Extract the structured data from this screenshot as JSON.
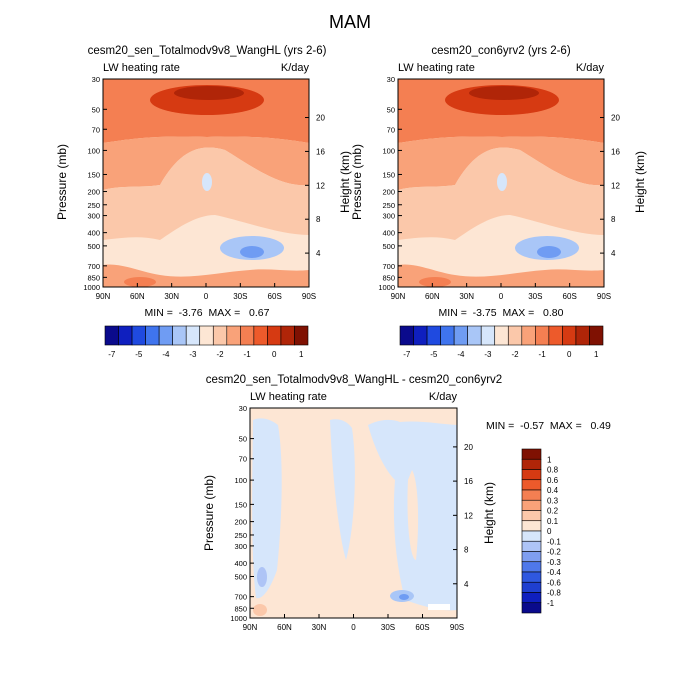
{
  "page_title": "MAM",
  "panels": [
    {
      "title": "cesm20_sen_Totalmodv9v8_WangHL (yrs 2-6)",
      "left_label": "LW heating rate",
      "right_label": "K/day",
      "ylabel": "Pressure (mb)",
      "y2label": "Height (km)",
      "stats": "MIN =  -3.76  MAX =   0.67"
    },
    {
      "title": "cesm20_con6yrv2 (yrs 2-6)",
      "left_label": "LW heating rate",
      "right_label": "K/day",
      "ylabel": "Pressure (mb)",
      "y2label": "Height (km)",
      "stats": "MIN =  -3.75  MAX =   0.80"
    },
    {
      "title": "cesm20_sen_Totalmodv9v8_WangHL - cesm20_con6yrv2",
      "left_label": "LW heating rate",
      "right_label": "K/day",
      "ylabel": "Pressure (mb)",
      "y2label": "Height (km)",
      "stats": "MIN =  -0.57  MAX =   0.49"
    }
  ],
  "colorbar_top": {
    "colors": [
      "#0a0a8c",
      "#0f1fbf",
      "#1f4ae0",
      "#3f74ee",
      "#6f9cf3",
      "#a9c6f7",
      "#d6e6fb",
      "#fde6d4",
      "#fbc8aa",
      "#f9a279",
      "#f47f52",
      "#ed5a2b",
      "#d63a12",
      "#b02508",
      "#7f1102"
    ],
    "tick_labels": [
      "-7",
      "-5",
      "-4",
      "-3",
      "-2",
      "-1",
      "0",
      "1"
    ]
  },
  "colorbar_diff": {
    "colors": [
      "#0a0a8c",
      "#0f1fbf",
      "#1f3fd0",
      "#2f58e0",
      "#4f78ea",
      "#7f9ef0",
      "#aec4f6",
      "#d6e6fb",
      "#fde6d4",
      "#fbc8aa",
      "#f9a279",
      "#f47f52",
      "#ed5a2b",
      "#d63a12",
      "#b02508",
      "#7f1102"
    ],
    "tick_labels": [
      "-1",
      "-0.8",
      "-0.6",
      "-0.4",
      "-0.3",
      "-0.2",
      "-0.1",
      "0",
      "0.1",
      "0.2",
      "0.3",
      "0.4",
      "0.6",
      "0.8",
      "1"
    ]
  },
  "chart_data": [
    {
      "type": "heatmap",
      "title": "cesm20_sen_Totalmodv9v8_WangHL (yrs 2-6)",
      "variable": "LW heating rate",
      "units": "K/day",
      "x_tick_labels": [
        "90N",
        "60N",
        "30N",
        "0",
        "30S",
        "60S",
        "90S"
      ],
      "y_tick_labels": [
        "30",
        "50",
        "70",
        "100",
        "150",
        "200",
        "250",
        "300",
        "400",
        "500",
        "700",
        "850",
        "1000"
      ],
      "y2_tick_labels": [
        "20",
        "16",
        "12",
        "8",
        "4"
      ],
      "y_scale": "log",
      "ylim": [
        1000,
        30
      ],
      "min": -3.76,
      "max": 0.67
    },
    {
      "type": "heatmap",
      "title": "cesm20_con6yrv2 (yrs 2-6)",
      "variable": "LW heating rate",
      "units": "K/day",
      "x_tick_labels": [
        "90N",
        "60N",
        "30N",
        "0",
        "30S",
        "60S",
        "90S"
      ],
      "y_tick_labels": [
        "30",
        "50",
        "70",
        "100",
        "150",
        "200",
        "250",
        "300",
        "400",
        "500",
        "700",
        "850",
        "1000"
      ],
      "y2_tick_labels": [
        "20",
        "16",
        "12",
        "8",
        "4"
      ],
      "y_scale": "log",
      "ylim": [
        1000,
        30
      ],
      "min": -3.75,
      "max": 0.8
    },
    {
      "type": "heatmap",
      "title": "cesm20_sen_Totalmodv9v8_WangHL - cesm20_con6yrv2",
      "variable": "LW heating rate",
      "units": "K/day",
      "x_tick_labels": [
        "90N",
        "60N",
        "30N",
        "0",
        "30S",
        "60S",
        "90S"
      ],
      "y_tick_labels": [
        "30",
        "50",
        "70",
        "100",
        "150",
        "200",
        "250",
        "300",
        "400",
        "500",
        "700",
        "850",
        "1000"
      ],
      "y2_tick_labels": [
        "20",
        "16",
        "12",
        "8",
        "4"
      ],
      "y_scale": "log",
      "ylim": [
        1000,
        30
      ],
      "min": -0.57,
      "max": 0.49
    }
  ]
}
